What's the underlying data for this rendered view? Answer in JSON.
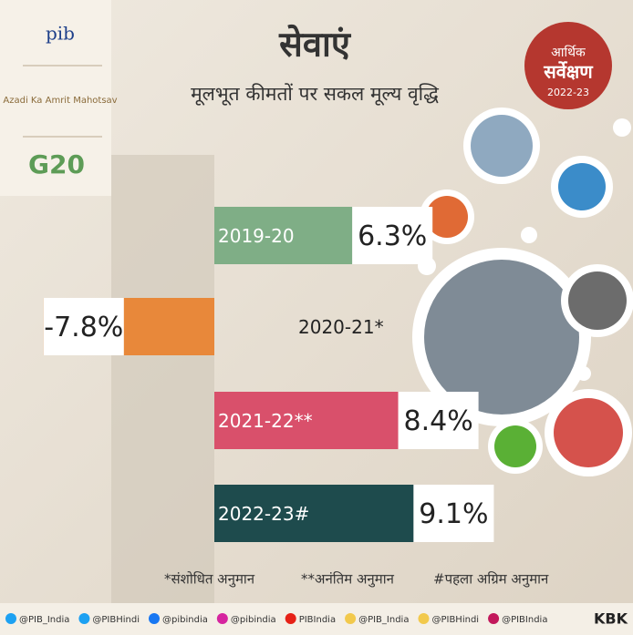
{
  "chart_data": {
    "type": "bar",
    "title": "सेवाएं",
    "subtitle": "मूलभूत कीमतों पर सकल मूल्य वृद्धि",
    "categories": [
      "2019-20",
      "2020-21*",
      "2021-22**",
      "2022-23#"
    ],
    "values": [
      6.3,
      -7.8,
      8.4,
      9.1
    ],
    "value_labels": [
      "6.3%",
      "-7.8%",
      "8.4%",
      "9.1%"
    ],
    "colors": [
      "#7fae86",
      "#e8883a",
      "#d9506b",
      "#1e4b4d"
    ],
    "annotations": [
      "*संशोधित अनुमान",
      "**अनंतिम अनुमान",
      "#पहला अग्रिम अनुमान"
    ]
  },
  "logos": {
    "pib": "pib",
    "azadi": "Azadi Ka Amrit Mahotsav",
    "g20": "G20",
    "survey": [
      "आर्थिक",
      "सर्वेक्षण",
      "2022-23"
    ]
  },
  "footer": {
    "handles": [
      "@PIB_India",
      "@PIBHindi",
      "@pibindia",
      "@pibindia",
      "PIBIndia",
      "@PIB_India",
      "@PIBHindi",
      "@PIBIndia"
    ],
    "credit": "KBK"
  }
}
